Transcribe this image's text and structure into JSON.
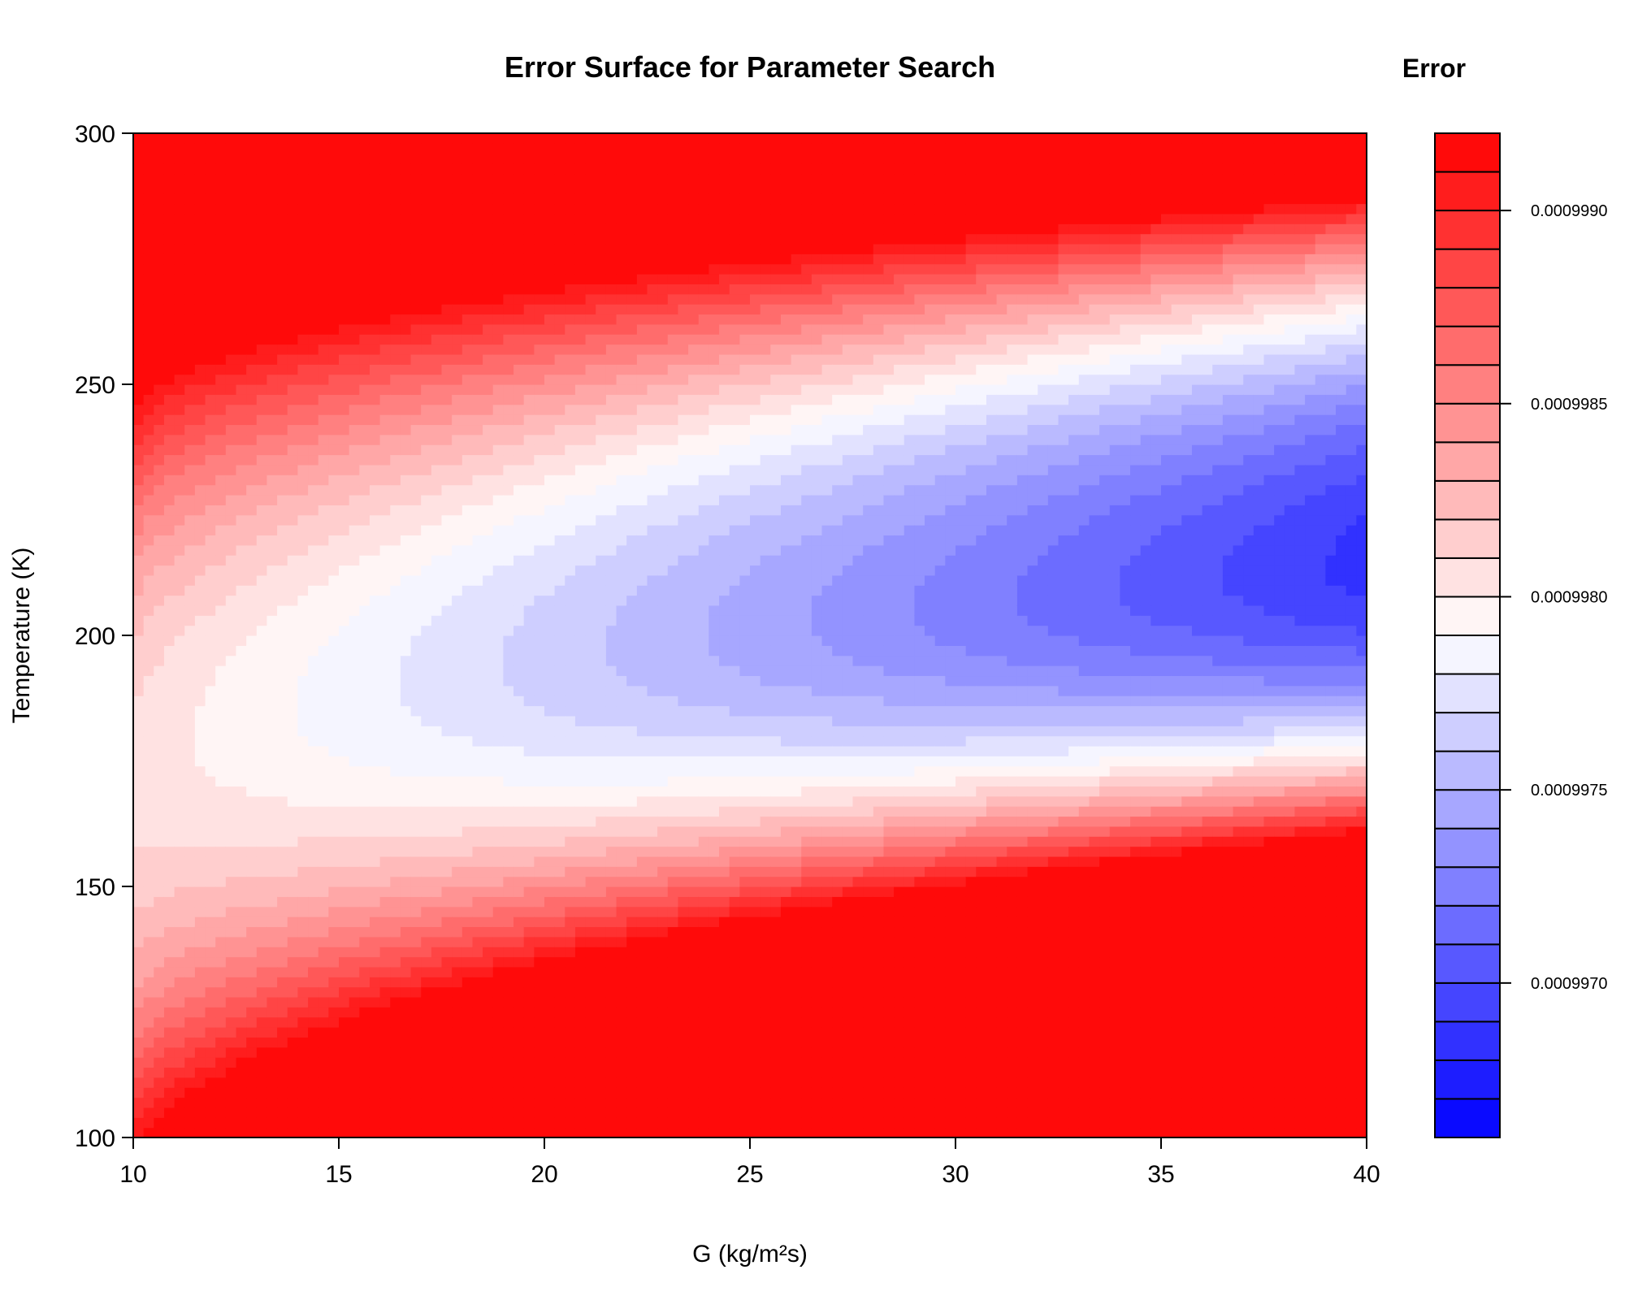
{
  "chart_data": {
    "type": "heatmap",
    "subtype": "filled-contour",
    "title": "Error Surface for Parameter Search",
    "xlabel": "G (kg/m²s)",
    "ylabel": "Temperature (K)",
    "xlim": [
      10,
      40
    ],
    "ylim": [
      100,
      300
    ],
    "x_ticks": [
      10,
      15,
      20,
      25,
      30,
      35,
      40
    ],
    "y_ticks": [
      100,
      150,
      200,
      250,
      300
    ],
    "colorbar": {
      "title": "Error",
      "range": [
        0.0009966,
        0.0009992
      ],
      "levels": 26,
      "ticks": [
        {
          "value": 0.000997,
          "label": "0.0009970"
        },
        {
          "value": 0.0009975,
          "label": "0.0009975"
        },
        {
          "value": 0.000998,
          "label": "0.0009980"
        },
        {
          "value": 0.0009985,
          "label": "0.0009985"
        },
        {
          "value": 0.000999,
          "label": "0.0009990"
        }
      ],
      "low_color": "#0000ff",
      "mid_color": "#ffffff",
      "high_color": "#ff0000"
    },
    "surface": {
      "min": {
        "x": 40,
        "y": 215,
        "value": 0.0009966
      },
      "valley_center_y_at_x10": 170,
      "high_regions": [
        "top-left (x=10, y=300)",
        "bottom-right (x=40, y=100)"
      ]
    },
    "grid": false,
    "legend": "colorbar-right"
  }
}
